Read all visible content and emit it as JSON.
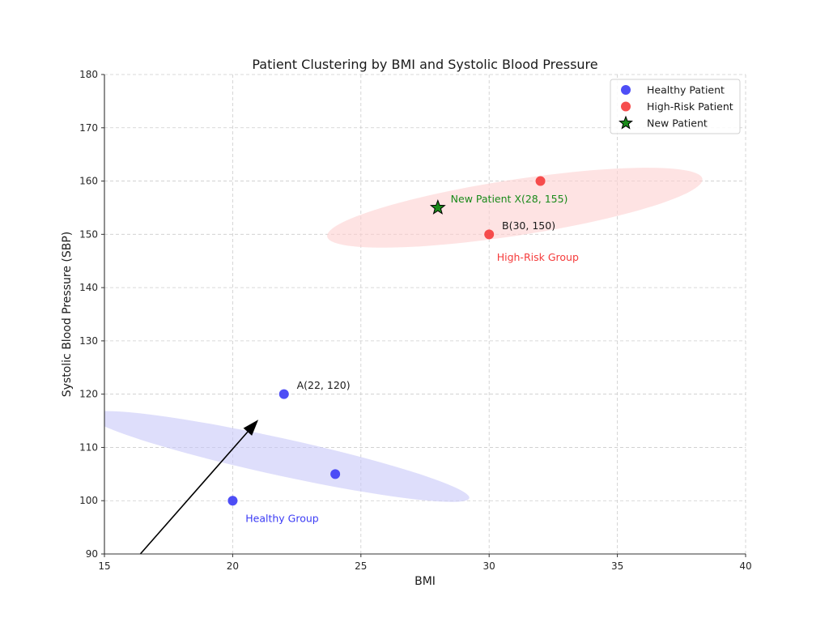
{
  "chart_data": {
    "type": "scatter",
    "title": "Patient Clustering by BMI and Systolic Blood Pressure",
    "xlabel": "BMI",
    "ylabel": "Systolic Blood Pressure (SBP)",
    "xlim": [
      15,
      40
    ],
    "ylim": [
      90,
      180
    ],
    "xticks": [
      15,
      20,
      25,
      30,
      35,
      40
    ],
    "yticks": [
      90,
      100,
      110,
      120,
      130,
      140,
      150,
      160,
      170,
      180
    ],
    "grid": true,
    "legend_position": "top-right",
    "series": [
      {
        "name": "Healthy Patient",
        "marker": "circle",
        "color": "#3b3bf5",
        "points": [
          {
            "x": 20,
            "y": 100
          },
          {
            "x": 22,
            "y": 120
          },
          {
            "x": 24,
            "y": 105
          }
        ]
      },
      {
        "name": "High-Risk Patient",
        "marker": "circle",
        "color": "#f53b3b",
        "points": [
          {
            "x": 30,
            "y": 150
          },
          {
            "x": 32,
            "y": 160
          }
        ]
      },
      {
        "name": "New Patient",
        "marker": "star",
        "color": "#1a8a1a",
        "points": [
          {
            "x": 28,
            "y": 155
          }
        ]
      }
    ],
    "clusters": [
      {
        "name": "Healthy Group",
        "center": {
          "x": 21.8,
          "y": 108.3
        },
        "semi_major": 7.6,
        "semi_minor_y": 7.0,
        "angle_deg": -22,
        "fill": "#c8c8f8",
        "label": "Healthy Group",
        "label_at": {
          "x": 20.5,
          "y": 96
        },
        "label_color": "#3b3bf5"
      },
      {
        "name": "High-Risk Group",
        "center": {
          "x": 31.0,
          "y": 155.0
        },
        "semi_major": 7.4,
        "semi_minor_y": 10.5,
        "angle_deg": 15.6,
        "fill": "#fdd0d0",
        "label": "High-Risk Group",
        "label_at": {
          "x": 30.3,
          "y": 145
        },
        "label_color": "#f53b3b"
      }
    ],
    "annotations": [
      {
        "text": "A(22, 120)",
        "at": {
          "x": 22.5,
          "y": 121
        },
        "color": "#1a1a1a"
      },
      {
        "text": "B(30, 150)",
        "at": {
          "x": 30.5,
          "y": 151
        },
        "color": "#1a1a1a"
      },
      {
        "text": "New Patient X(28, 155)",
        "at": {
          "x": 28.5,
          "y": 156
        },
        "color": "#1a8a1a"
      }
    ],
    "arrow": {
      "from": {
        "x": 16.4,
        "y": 90
      },
      "to": {
        "x": 21.0,
        "y": 115.2
      },
      "color": "#000000"
    }
  }
}
